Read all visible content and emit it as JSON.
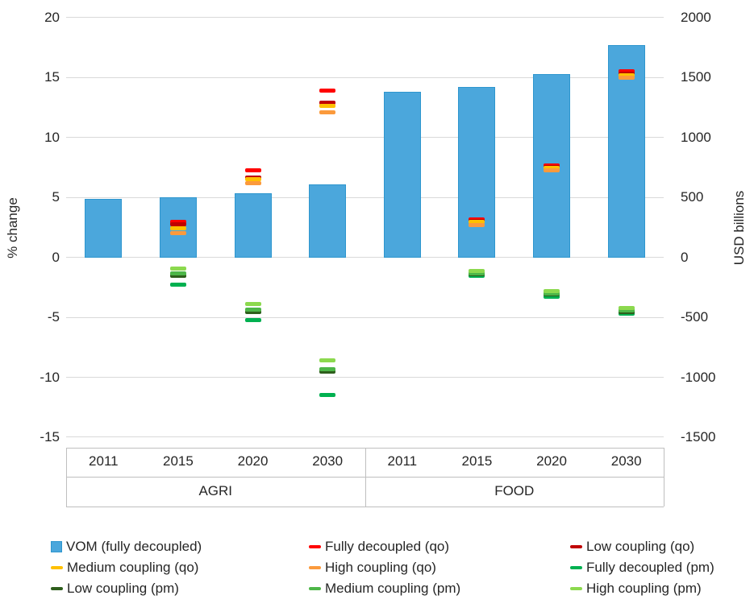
{
  "chart_data": {
    "type": "bar",
    "overlay": "dash-markers",
    "title": "",
    "left_axis": {
      "label": "% change",
      "min": -15,
      "max": 20,
      "ticks": [
        20,
        15,
        10,
        5,
        0,
        -5,
        -10,
        -15
      ]
    },
    "right_axis": {
      "label": "USD billions",
      "min": -1500,
      "max": 2000,
      "ticks": [
        2000,
        1500,
        1000,
        500,
        0,
        -500,
        -1000,
        -1500
      ]
    },
    "group_labels": [
      "AGRI",
      "FOOD"
    ],
    "year_labels": [
      "2011",
      "2015",
      "2020",
      "2030",
      "2011",
      "2015",
      "2020",
      "2030"
    ],
    "grid": true,
    "legend_position": "bottom",
    "bar_series": {
      "name": "VOM (fully decoupled)",
      "color": "#4BA7DC",
      "border_color": "#2E96CE",
      "values_pct_change": [
        4.9,
        5.0,
        5.35,
        6.1,
        13.8,
        14.2,
        15.3,
        17.7
      ],
      "values_usd_billions": [
        490,
        500,
        535,
        610,
        1380,
        1420,
        1530,
        1770
      ]
    },
    "marker_series": [
      {
        "name": "Fully decoupled (qo)",
        "color": "#FF0000",
        "values": [
          null,
          2.95,
          7.3,
          13.9,
          null,
          3.2,
          7.7,
          15.5
        ]
      },
      {
        "name": "Low coupling (qo)",
        "color": "#C00000",
        "values": [
          null,
          2.8,
          6.65,
          12.9,
          null,
          3.05,
          7.55,
          15.35
        ]
      },
      {
        "name": "Medium coupling (qo)",
        "color": "#FFC000",
        "values": [
          null,
          2.4,
          6.5,
          12.65,
          null,
          2.95,
          7.45,
          15.2
        ]
      },
      {
        "name": "High coupling (qo)",
        "color": "#FB9A3C",
        "values": [
          null,
          2.05,
          6.2,
          12.1,
          null,
          2.7,
          7.25,
          15.0
        ]
      },
      {
        "name": "Fully decoupled (pm)",
        "color": "#00B050",
        "values": [
          null,
          -2.25,
          -5.2,
          -11.5,
          null,
          -1.5,
          -3.25,
          -4.7
        ]
      },
      {
        "name": "Low coupling (pm)",
        "color": "#2E5E1C",
        "values": [
          null,
          -1.55,
          -4.55,
          -9.55,
          null,
          -1.4,
          -3.1,
          -4.55
        ]
      },
      {
        "name": "Medium coupling (pm)",
        "color": "#4DB648",
        "values": [
          null,
          -1.35,
          -4.35,
          -9.3,
          null,
          -1.3,
          -3.0,
          -4.4
        ]
      },
      {
        "name": "High coupling (pm)",
        "color": "#8CD94E",
        "values": [
          null,
          -0.95,
          -3.9,
          -8.6,
          null,
          -1.1,
          -2.8,
          -4.2
        ]
      }
    ],
    "legend": [
      {
        "label": "VOM (fully decoupled)",
        "color": "#4BA7DC",
        "border_color": "#2E96CE",
        "shape": "square"
      },
      {
        "label": "Fully decoupled (qo)",
        "color": "#FF0000",
        "shape": "dash"
      },
      {
        "label": "Low coupling (qo)",
        "color": "#C00000",
        "shape": "dash"
      },
      {
        "label": "Medium coupling (qo)",
        "color": "#FFC000",
        "shape": "dash"
      },
      {
        "label": "High coupling (qo)",
        "color": "#FB9A3C",
        "shape": "dash"
      },
      {
        "label": "Fully decoupled (pm)",
        "color": "#00B050",
        "shape": "dash"
      },
      {
        "label": "Low coupling (pm)",
        "color": "#2E5E1C",
        "shape": "dash"
      },
      {
        "label": "Medium coupling (pm)",
        "color": "#4DB648",
        "shape": "dash"
      },
      {
        "label": "High coupling (pm)",
        "color": "#8CD94E",
        "shape": "dash"
      }
    ]
  }
}
